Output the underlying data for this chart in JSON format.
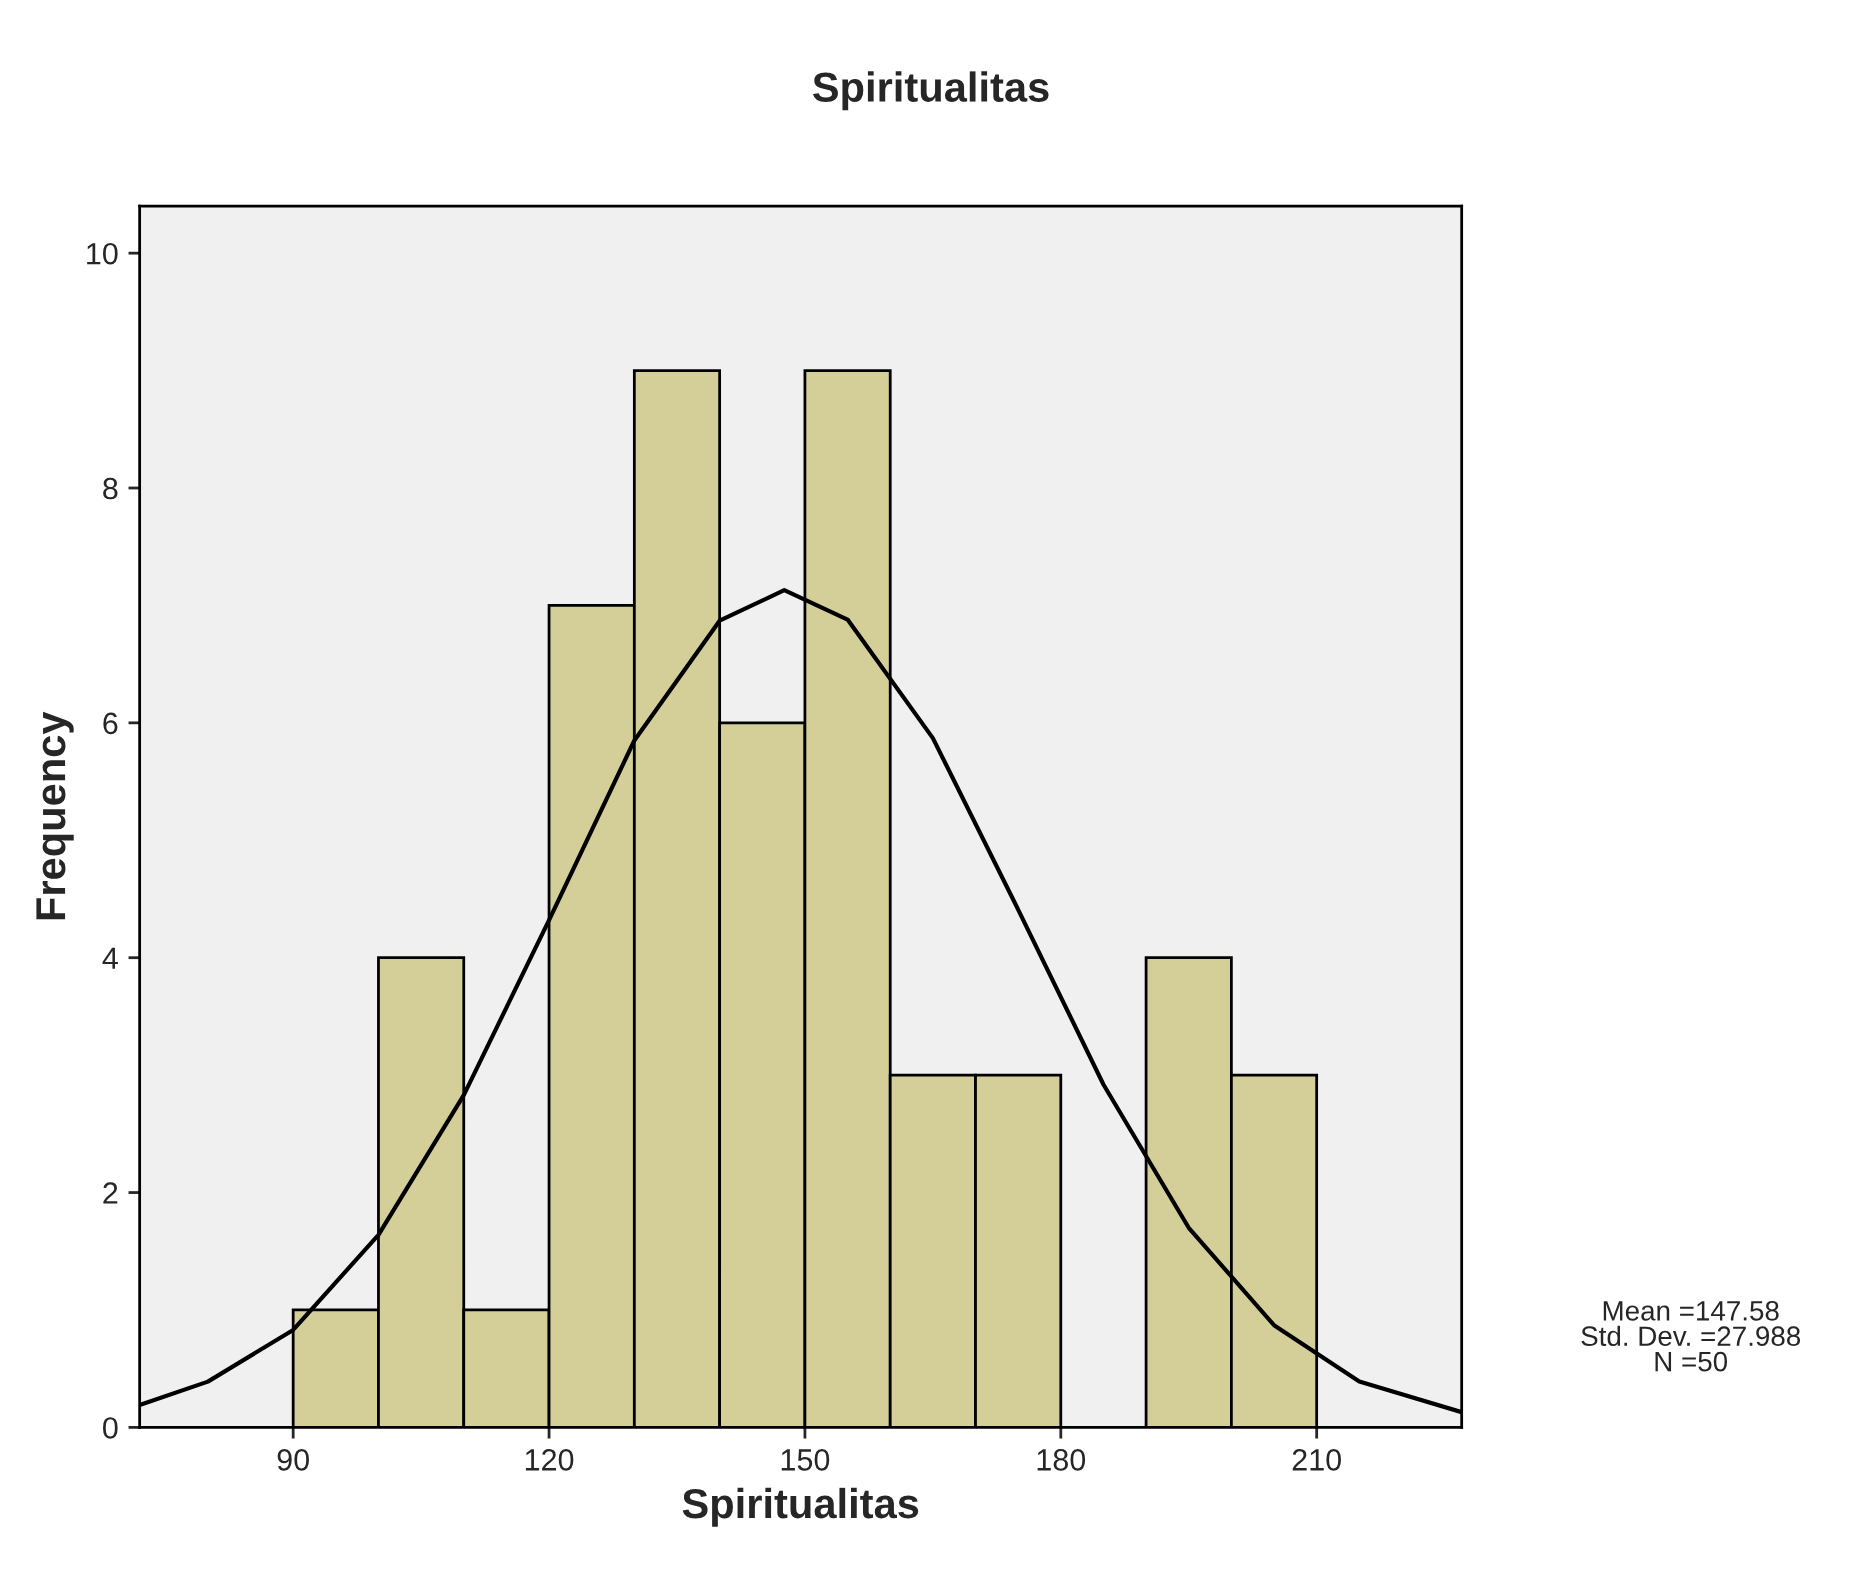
{
  "chart_data": {
    "type": "histogram",
    "title": "Spiritualitas",
    "xlabel": "Spiritualitas",
    "ylabel": "Frequency",
    "bins": [
      90,
      100,
      110,
      120,
      130,
      140,
      150,
      160,
      170,
      180,
      190,
      200,
      210
    ],
    "values": [
      1,
      4,
      1,
      7,
      9,
      6,
      9,
      3,
      3,
      0,
      4,
      3
    ],
    "color": "#d4cf98",
    "series": [
      {
        "type": "line",
        "color": "#000000",
        "x": [
          72,
          80,
          90,
          100,
          110,
          120,
          130,
          140,
          147.58,
          155,
          165,
          175,
          185,
          195,
          205,
          215,
          227
        ],
        "values": [
          0.19,
          0.39,
          0.83,
          1.64,
          2.83,
          4.32,
          5.85,
          6.87,
          7.13,
          6.88,
          5.87,
          4.41,
          2.92,
          1.7,
          0.87,
          0.39,
          0.13
        ]
      }
    ],
    "xlim": [
      72,
      227
    ],
    "ylim": [
      0,
      10.4
    ],
    "xticks": [
      90,
      120,
      150,
      180,
      210
    ],
    "yticks": [
      0,
      2,
      4,
      6,
      8,
      10
    ],
    "grid": false,
    "legend": false,
    "annotations": [
      "Mean =147.58",
      "Std. Dev. =27.988",
      "N =50"
    ]
  }
}
